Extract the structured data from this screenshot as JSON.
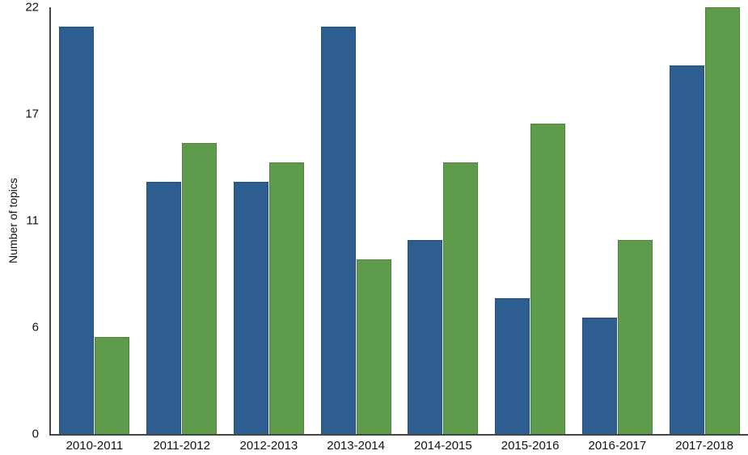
{
  "chart_data": {
    "type": "bar",
    "title": "",
    "xlabel": "",
    "ylabel": "Number of topics",
    "ylim": [
      0,
      22
    ],
    "grid": false,
    "legend": "none",
    "categories": [
      "2010-2011",
      "2011-2012",
      "2012-2013",
      "2013-2014",
      "2014-2015",
      "2015-2016",
      "2016-2017",
      "2017-2018"
    ],
    "series": [
      {
        "name": "blue-series",
        "color": "#2e5e90",
        "border_color": "#264f7b",
        "values": [
          21,
          13,
          13,
          21,
          10,
          7,
          6,
          19
        ]
      },
      {
        "name": "green-series",
        "color": "#5e9b4a",
        "border_color": "#4e833d",
        "values": [
          5,
          15,
          14,
          9,
          14,
          16,
          10,
          22
        ]
      }
    ],
    "yticks": [
      {
        "value": 0,
        "label": "0"
      },
      {
        "value": 5.5,
        "label": "6"
      },
      {
        "value": 11,
        "label": "11"
      },
      {
        "value": 16.5,
        "label": "17"
      },
      {
        "value": 22,
        "label": "22"
      }
    ],
    "axis_color": "#454545",
    "background_color": "#ffffff"
  }
}
